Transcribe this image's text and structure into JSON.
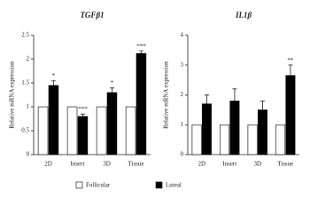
{
  "chart_data": [
    {
      "type": "bar",
      "title": "TGFβ1",
      "y_label": "Relative mRNA expression",
      "categories": [
        "2D",
        "Insert",
        "3D",
        "Tissue"
      ],
      "series": [
        {
          "name": "Follicular",
          "color": "#ffffff",
          "values": [
            1,
            1,
            1,
            1
          ]
        },
        {
          "name": "Luteal",
          "color": "#000000",
          "values": [
            1.45,
            0.8,
            1.3,
            2.12
          ],
          "errors": [
            0.1,
            0.05,
            0.1,
            0.05
          ]
        }
      ],
      "annotations": [
        "*",
        "***",
        "*",
        "***"
      ],
      "ylim": [
        0,
        2.5
      ],
      "yticks": [
        0,
        0.5,
        1,
        1.5,
        2,
        2.5
      ]
    },
    {
      "type": "bar",
      "title": "IL1β",
      "y_label": "Relative mRNA expression",
      "categories": [
        "2D",
        "Insert",
        "3D",
        "Tissue"
      ],
      "series": [
        {
          "name": "Follicular",
          "color": "#ffffff",
          "values": [
            1,
            1,
            1,
            1
          ]
        },
        {
          "name": "Luteal",
          "color": "#000000",
          "values": [
            1.7,
            1.8,
            1.5,
            2.65
          ],
          "errors": [
            0.3,
            0.4,
            0.3,
            0.35
          ]
        }
      ],
      "annotations": [
        null,
        null,
        null,
        "**"
      ],
      "ylim": [
        0,
        4
      ],
      "yticks": [
        0,
        1,
        2,
        3,
        4
      ]
    }
  ]
}
